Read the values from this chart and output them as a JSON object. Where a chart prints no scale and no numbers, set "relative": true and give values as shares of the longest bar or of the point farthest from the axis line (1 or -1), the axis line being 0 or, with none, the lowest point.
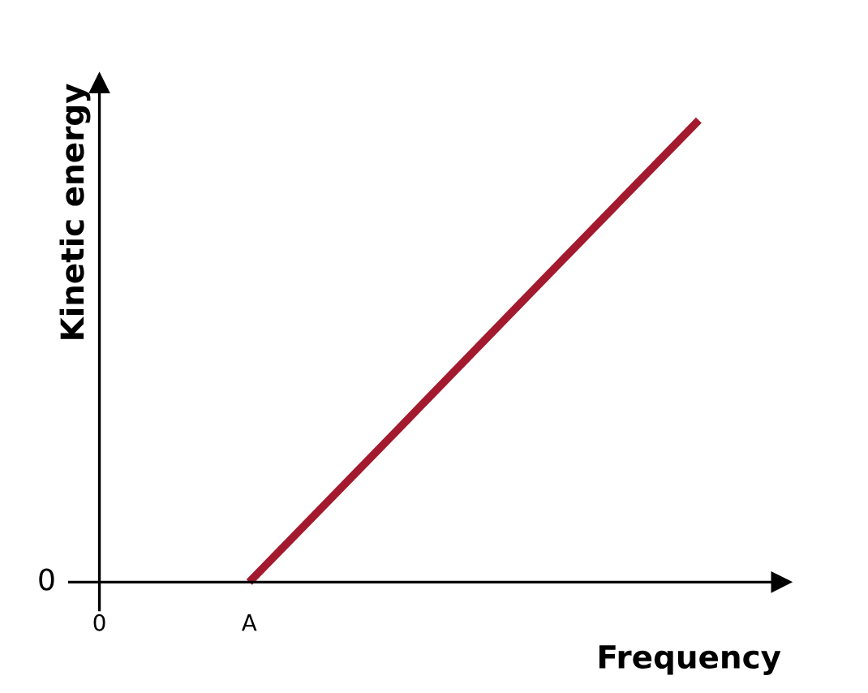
{
  "chart_data": {
    "type": "line",
    "relative": true,
    "xlabel": "Frequency",
    "ylabel": "Kinetic energy",
    "categories": [
      "0",
      "A",
      null,
      null,
      null
    ],
    "series": [
      {
        "color": "#a31a2e",
        "values": [
          null,
          0,
          0.333,
          0.667,
          1
        ]
      }
    ],
    "annotations": [
      "0"
    ],
    "legend": false,
    "marker": "none",
    "line_style": "solid"
  }
}
